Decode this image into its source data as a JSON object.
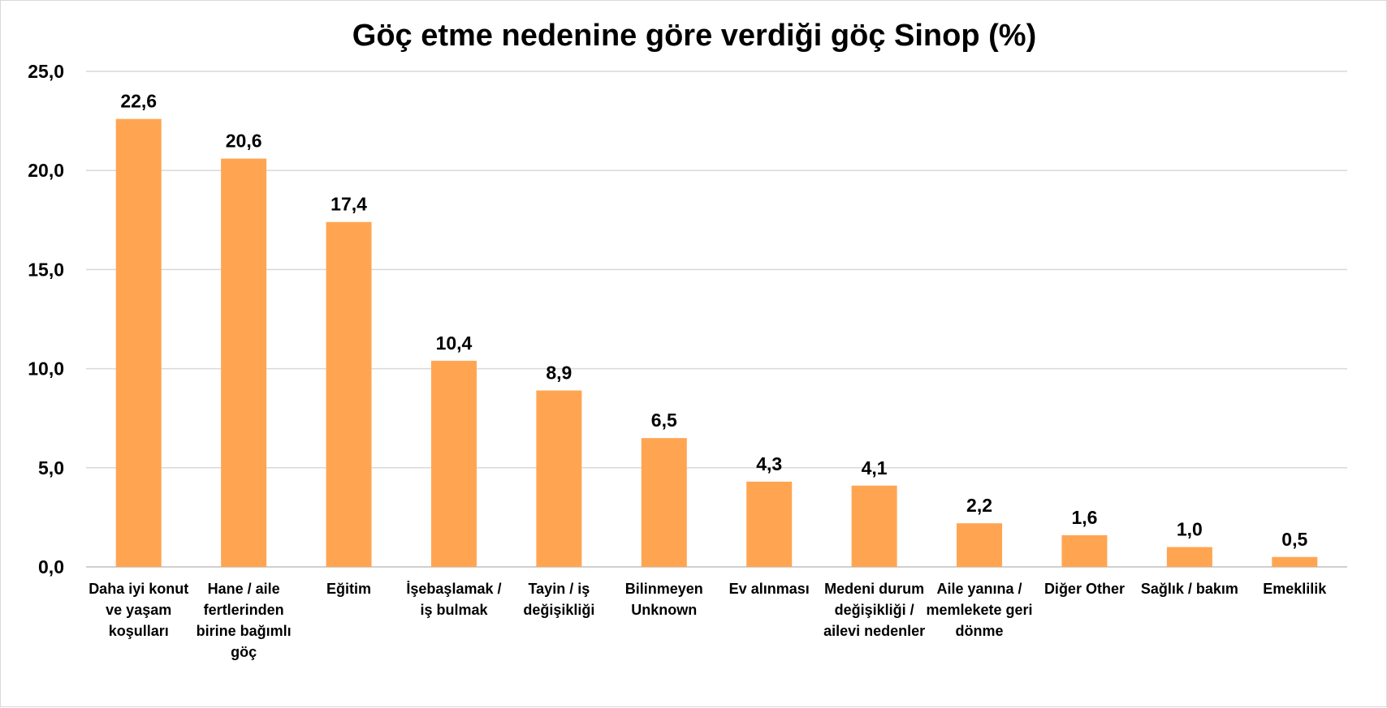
{
  "chart_data": {
    "type": "bar",
    "title": "Göç etme nedenine göre verdiği göç Sinop (%)",
    "xlabel": "",
    "ylabel": "",
    "ylim": [
      0,
      25
    ],
    "yticks": [
      "0,0",
      "5,0",
      "10,0",
      "15,0",
      "20,0",
      "25,0"
    ],
    "grid": true,
    "legend": "none",
    "bar_color": "#FFA552",
    "categories": [
      "Daha iyi konut ve yaşam koşulları",
      "Hane / aile fertlerinden birine bağımlı göç",
      "Eğitim",
      "İşebaşlamak / iş bulmak",
      "Tayin / iş değişikliği",
      "Bilinmeyen Unknown",
      "Ev alınması",
      "Medeni durum değişikliği / ailevi nedenler",
      "Aile yanına / memlekete geri dönme",
      "Diğer Other",
      "Sağlık / bakım",
      "Emeklilik"
    ],
    "values": [
      22.6,
      20.6,
      17.4,
      10.4,
      8.9,
      6.5,
      4.3,
      4.1,
      2.2,
      1.6,
      1.0,
      0.5
    ],
    "value_labels": [
      "22,6",
      "20,6",
      "17,4",
      "10,4",
      "8,9",
      "6,5",
      "4,3",
      "4,1",
      "2,2",
      "1,6",
      "1,0",
      "0,5"
    ]
  }
}
